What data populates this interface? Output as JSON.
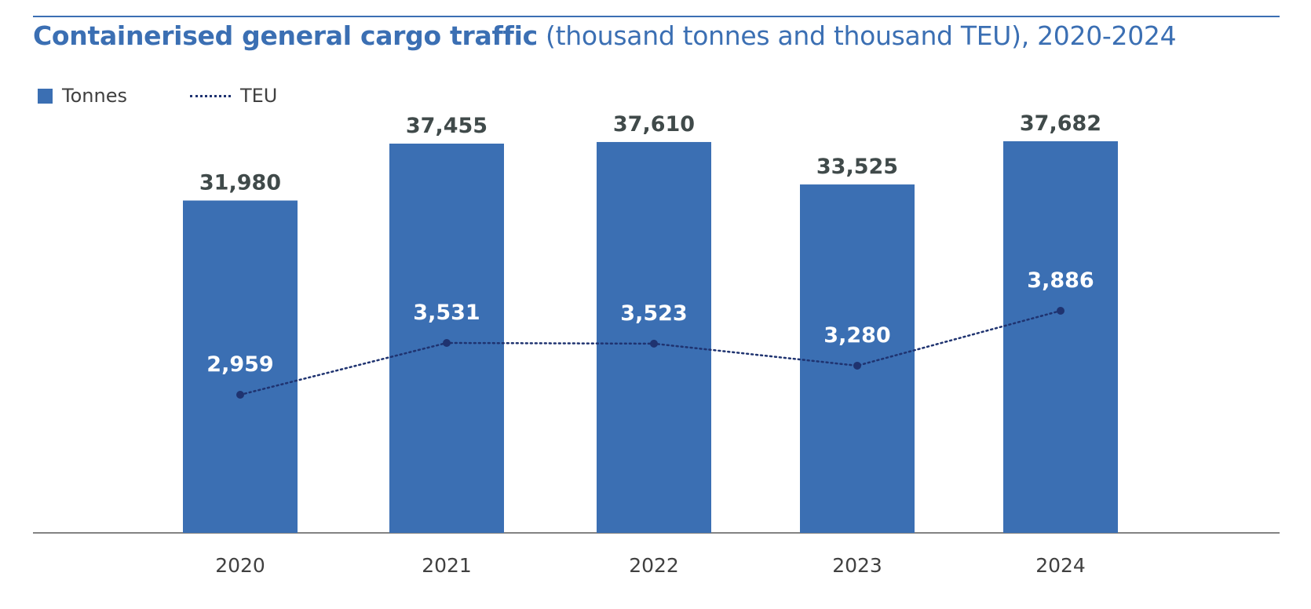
{
  "title": {
    "bold": "Containerised general cargo traffic",
    "rest": " (thousand tonnes and thousand TEU), 2020-2024"
  },
  "legend": {
    "tonnes": "Tonnes",
    "teu": "TEU"
  },
  "colors": {
    "bar": "#3b6fb3",
    "line": "#1f3370",
    "title": "#3b6fb3"
  },
  "chart_data": {
    "type": "bar",
    "title": "Containerised general cargo traffic (thousand tonnes and thousand TEU), 2020-2024",
    "categories": [
      "2020",
      "2021",
      "2022",
      "2023",
      "2024"
    ],
    "series": [
      {
        "name": "Tonnes",
        "type": "bar",
        "values": [
          31980,
          37455,
          37610,
          33525,
          37682
        ],
        "labels": [
          "31,980",
          "37,455",
          "37,610",
          "33,525",
          "37,682"
        ]
      },
      {
        "name": "TEU",
        "type": "line",
        "style": "dotted",
        "values": [
          2959,
          3531,
          3523,
          3280,
          3886
        ],
        "labels": [
          "2,959",
          "3,531",
          "3,523",
          "3,280",
          "3,886"
        ]
      }
    ],
    "xlabel": "",
    "ylabel": "",
    "grid": false,
    "legend": "top-left"
  }
}
